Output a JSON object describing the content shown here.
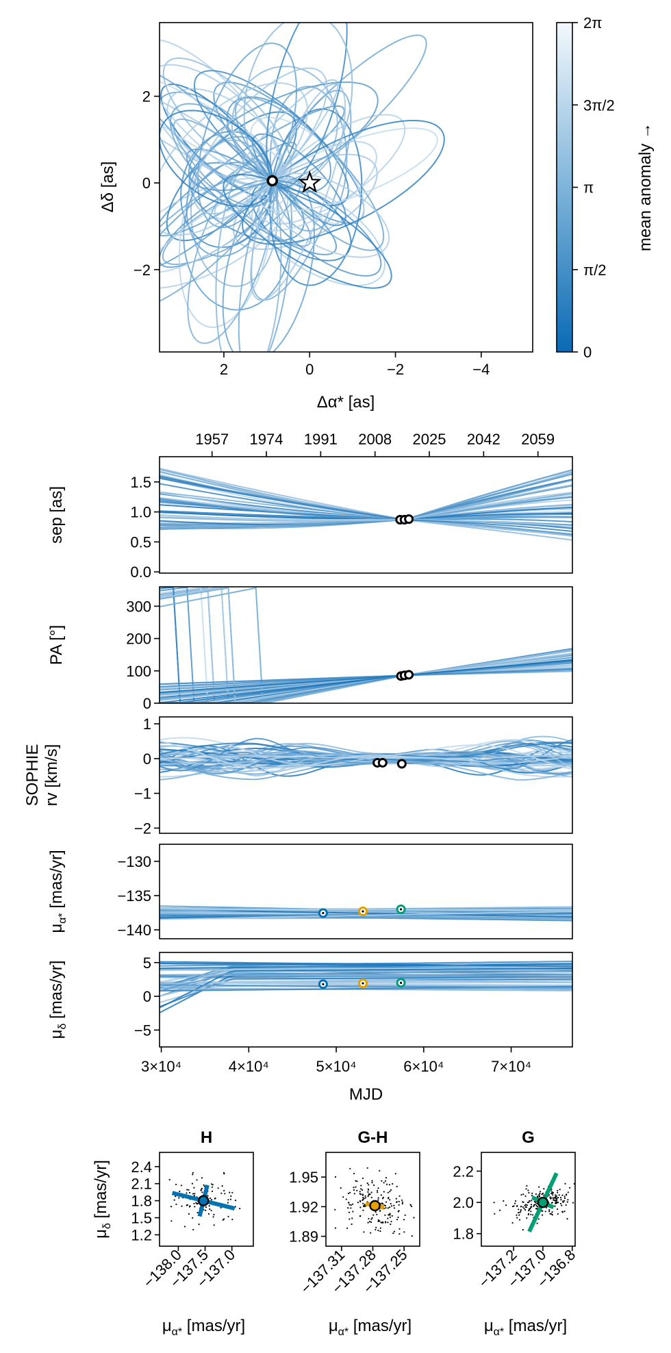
{
  "chart_data": [
    {
      "id": "orbit",
      "type": "line",
      "xlabel": "Δα* [as]",
      "ylabel": "Δδ [as]",
      "xlim": [
        3.5,
        -5.2
      ],
      "ylim": [
        -3.9,
        3.7
      ],
      "xticks": [
        2,
        0,
        -2,
        -4
      ],
      "xtick_labels": [
        "2",
        "0",
        "−2",
        "−4"
      ],
      "yticks": [
        2,
        0,
        -2
      ],
      "ytick_labels": [
        "2",
        "0",
        "−2"
      ],
      "colorbar": {
        "label": "mean anomaly →",
        "range": [
          0,
          6.2832
        ],
        "ticks": [
          0,
          1.5708,
          3.1416,
          4.7124,
          6.2832
        ],
        "tick_labels": [
          "0",
          "π/2",
          "π",
          "3π/2",
          "2π"
        ],
        "color_low": "#0a6ab4",
        "color_high": "#f3f8fc"
      },
      "star": {
        "x": 0.0,
        "y": 0.0
      },
      "observations": [
        {
          "x": 0.87,
          "y": 0.05
        }
      ],
      "orbit_count": 60
    },
    {
      "id": "sep",
      "type": "line",
      "xlabel": "",
      "ylabel": "sep [as]",
      "xlim": [
        29800,
        77000
      ],
      "ylim": [
        -0.02,
        1.92
      ],
      "yticks": [
        0.0,
        0.5,
        1.0,
        1.5
      ],
      "ytick_labels": [
        "0.0",
        "0.5",
        "1.0",
        "1.5"
      ],
      "top_axis": {
        "xticks": [
          35804,
          42014,
          48223,
          54433,
          60642,
          66852,
          73061
        ],
        "xtick_labels": [
          "1957",
          "1974",
          "1991",
          "2008",
          "2025",
          "2042",
          "2059"
        ]
      },
      "observations": [
        {
          "x": 57300,
          "y": 0.87
        },
        {
          "x": 57800,
          "y": 0.87
        },
        {
          "x": 58300,
          "y": 0.88
        }
      ],
      "converge": {
        "x": 57800,
        "y": 0.87
      }
    },
    {
      "id": "pa",
      "type": "line",
      "xlabel": "",
      "ylabel": "PA [°]",
      "xlim": [
        29800,
        77000
      ],
      "ylim": [
        0,
        360
      ],
      "yticks": [
        0,
        100,
        200,
        300
      ],
      "ytick_labels": [
        "0",
        "100",
        "200",
        "300"
      ],
      "observations": [
        {
          "x": 57400,
          "y": 84
        },
        {
          "x": 57800,
          "y": 86
        },
        {
          "x": 58300,
          "y": 88
        }
      ],
      "converge": {
        "x": 57800,
        "y": 86
      }
    },
    {
      "id": "rv",
      "type": "line",
      "xlabel": "",
      "ylabel": "SOPHIE rv [km/s]",
      "ylabel_lines": [
        "SOPHIE",
        "rv [km/s]"
      ],
      "xlim": [
        29800,
        77000
      ],
      "ylim": [
        -2.15,
        1.2
      ],
      "yticks": [
        -2,
        -1,
        0,
        1
      ],
      "ytick_labels": [
        "−2",
        "−1",
        "0",
        "1"
      ],
      "observations": [
        {
          "x": 54700,
          "y": -0.12
        },
        {
          "x": 55300,
          "y": -0.12
        },
        {
          "x": 57500,
          "y": -0.15
        }
      ]
    },
    {
      "id": "pmra",
      "type": "line",
      "xlabel": "",
      "ylabel": "μα* [mas/yr]",
      "ylabel_main": "μ",
      "ylabel_sub": "α*",
      "ylabel_rest": " [mas/yr]",
      "xlim": [
        29800,
        77000
      ],
      "ylim": [
        -141.3,
        -127.5
      ],
      "yticks": [
        -140,
        -135,
        -130
      ],
      "ytick_labels": [
        "−140",
        "−135",
        "−130"
      ],
      "observations": [
        {
          "x": 48500,
          "y": -137.55,
          "color": "#0072b2"
        },
        {
          "x": 53050,
          "y": -137.3,
          "color": "#e69f00"
        },
        {
          "x": 57400,
          "y": -137.0,
          "color": "#009e73"
        }
      ]
    },
    {
      "id": "pmdec",
      "type": "line",
      "xlabel": "MJD",
      "ylabel": "μδ [mas/yr]",
      "ylabel_main": "μ",
      "ylabel_sub": "δ",
      "ylabel_rest": " [mas/yr]",
      "xlim": [
        29800,
        77000
      ],
      "ylim": [
        -7.5,
        6.5
      ],
      "xticks": [
        30000,
        40000,
        50000,
        60000,
        70000
      ],
      "xtick_labels": [
        "3×10⁴",
        "4×10⁴",
        "5×10⁴",
        "6×10⁴",
        "7×10⁴"
      ],
      "yticks": [
        -5,
        0,
        5
      ],
      "ytick_labels": [
        "−5",
        "0",
        "5"
      ],
      "observations": [
        {
          "x": 48500,
          "y": 1.8,
          "color": "#0072b2"
        },
        {
          "x": 53050,
          "y": 1.92,
          "color": "#e69f00"
        },
        {
          "x": 57400,
          "y": 2.0,
          "color": "#009e73"
        }
      ]
    },
    {
      "id": "H",
      "type": "scatter",
      "title": "H",
      "xlabel": "μα* [mas/yr]",
      "ylabel": "μδ [mas/yr]",
      "xlim": [
        -138.35,
        -136.6
      ],
      "ylim": [
        1.0,
        2.65
      ],
      "xticks": [
        -138.0,
        -137.5,
        -137.0
      ],
      "xtick_labels": [
        "−138.0",
        "−137.5",
        "−137.0"
      ],
      "yticks": [
        1.2,
        1.5,
        1.8,
        2.1,
        2.4
      ],
      "ytick_labels": [
        "1.2",
        "1.5",
        "1.8",
        "2.1",
        "2.4"
      ],
      "color": "#0072b2",
      "center": {
        "x": -137.53,
        "y": 1.8
      },
      "error_major": {
        "angle_deg": -14,
        "half_len": 0.6
      },
      "error_minor": {
        "half_len": 0.3
      },
      "scatter_spread": {
        "x": 0.33,
        "y": 0.18,
        "tilt": -0.3
      },
      "n_points": 120
    },
    {
      "id": "G-H",
      "type": "scatter",
      "title": "G-H",
      "xlabel": "μα* [mas/yr]",
      "ylabel": "",
      "xlim": [
        -137.325,
        -137.235
      ],
      "ylim": [
        1.88,
        1.975
      ],
      "xticks": [
        -137.31,
        -137.28,
        -137.25
      ],
      "xtick_labels": [
        "−137.31",
        "−137.28",
        "−137.25"
      ],
      "yticks": [
        1.89,
        1.92,
        1.95
      ],
      "ytick_labels": [
        "1.89",
        "1.92",
        "1.95"
      ],
      "color": "#e69f00",
      "center": {
        "x": -137.278,
        "y": 1.921
      },
      "error_major": {
        "angle_deg": -12,
        "half_len": 0.009
      },
      "error_minor": {
        "half_len": 0.0045
      },
      "scatter_spread": {
        "x": 0.018,
        "y": 0.014,
        "tilt": -0.1
      },
      "n_points": 200
    },
    {
      "id": "G",
      "type": "scatter",
      "title": "G",
      "xlabel": "μα* [mas/yr]",
      "ylabel": "",
      "xlim": [
        -137.42,
        -136.78
      ],
      "ylim": [
        1.72,
        2.32
      ],
      "xticks": [
        -137.2,
        -137.0,
        -136.8
      ],
      "xtick_labels": [
        "−137.2",
        "−137.0",
        "−136.8"
      ],
      "yticks": [
        1.8,
        2.0,
        2.2
      ],
      "ytick_labels": [
        "1.8",
        "2.0",
        "2.2"
      ],
      "color": "#009e73",
      "center": {
        "x": -137.0,
        "y": 2.0
      },
      "error_major": {
        "angle_deg": 65,
        "half_len": 0.22
      },
      "error_minor": {
        "half_len": 0.08
      },
      "scatter_spread": {
        "x": 0.12,
        "y": 0.045,
        "tilt": 0.45
      },
      "n_points": 220
    }
  ]
}
